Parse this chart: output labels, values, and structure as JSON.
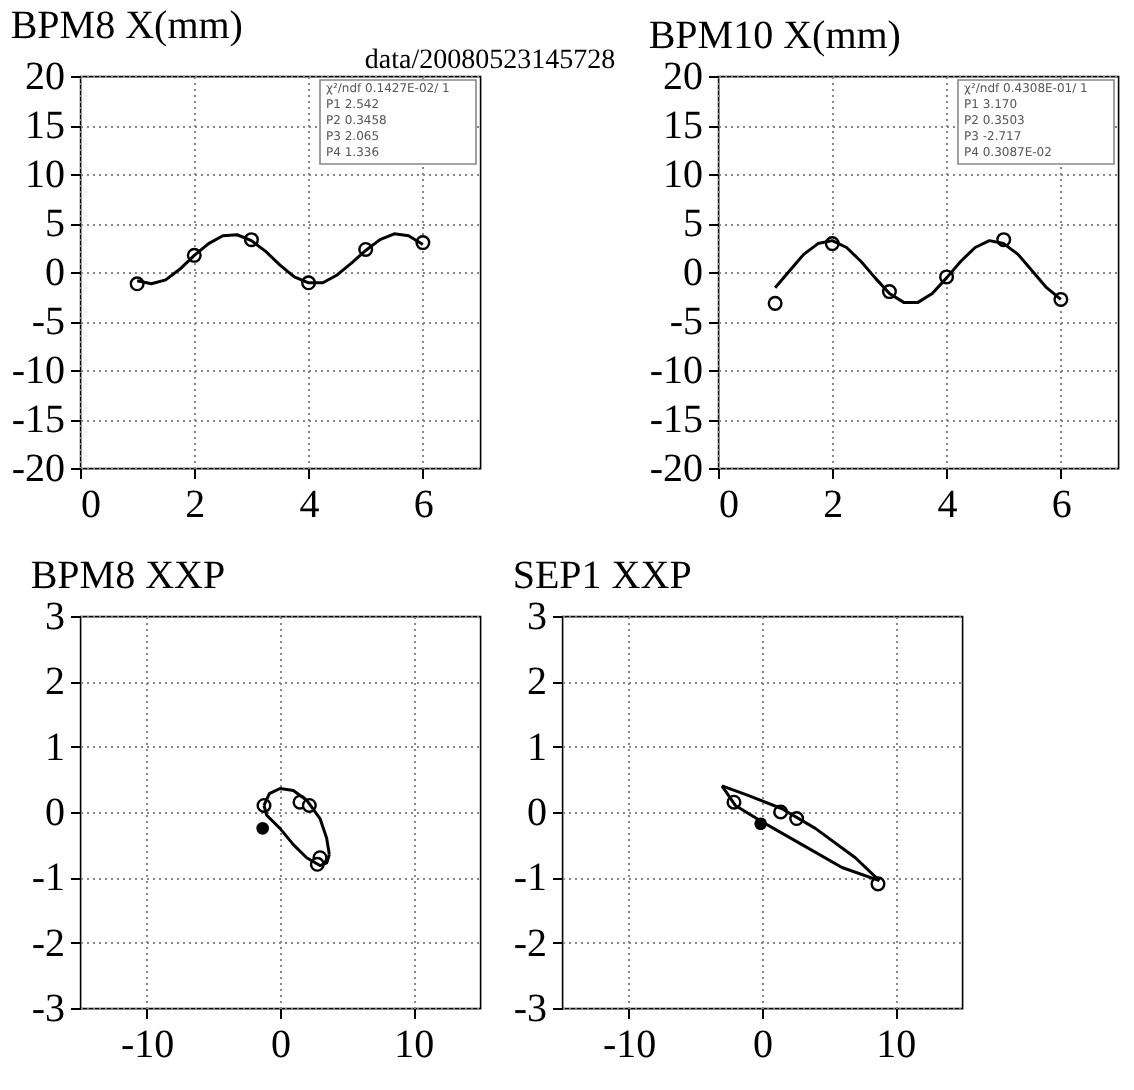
{
  "chart_data": [
    {
      "type": "scatter",
      "title": "BPM8 X(mm)",
      "subtitle": "data/20080523145728",
      "xlim": [
        0,
        7
      ],
      "xticks": [
        0,
        2,
        4,
        6
      ],
      "ylim": [
        -20,
        20
      ],
      "yticks": [
        -20,
        -15,
        -10,
        -5,
        0,
        5,
        10,
        15,
        20
      ],
      "grid": true,
      "annotations": [
        "χ²/ndf 0.1427E-02/ 1",
        "P1 2.542",
        "P2 0.3458",
        "P3 2.065",
        "P4 1.336"
      ],
      "series": [
        {
          "marker": "circle",
          "color": "#000000",
          "x": [
            1,
            2,
            3,
            4,
            5,
            6
          ],
          "values": [
            -1.2,
            1.7,
            3.3,
            -1.1,
            2.3,
            3.0
          ]
        },
        {
          "type": "line",
          "marker": "none",
          "color": "#000000",
          "x": [
            1,
            1.25,
            1.5,
            1.75,
            2,
            2.25,
            2.5,
            2.75,
            3,
            3.25,
            3.5,
            3.75,
            4,
            4.25,
            4.5,
            4.75,
            5,
            5.25,
            5.5,
            5.75,
            6
          ],
          "values": [
            -0.9,
            -1.2,
            -0.8,
            0.3,
            1.7,
            2.9,
            3.7,
            3.8,
            3.2,
            2.1,
            0.7,
            -0.5,
            -1.1,
            -1.1,
            -0.3,
            0.9,
            2.2,
            3.3,
            3.9,
            3.7,
            2.8
          ]
        }
      ]
    },
    {
      "type": "scatter",
      "title": "BPM10 X(mm)",
      "xlim": [
        0,
        7
      ],
      "xticks": [
        0,
        2,
        4,
        6
      ],
      "ylim": [
        -20,
        20
      ],
      "yticks": [
        -20,
        -15,
        -10,
        -5,
        0,
        5,
        10,
        15,
        20
      ],
      "grid": true,
      "annotations": [
        "χ²/ndf 0.4308E-01/ 1",
        "P1 3.170",
        "P2 0.3503",
        "P3 -2.717",
        "P4 0.3087E-02"
      ],
      "series": [
        {
          "marker": "circle",
          "color": "#000000",
          "x": [
            1,
            2,
            3,
            4,
            5,
            6
          ],
          "values": [
            -3.2,
            2.9,
            -2.0,
            -0.5,
            3.3,
            -2.8
          ]
        },
        {
          "type": "line",
          "marker": "none",
          "color": "#000000",
          "x": [
            1,
            1.25,
            1.5,
            1.75,
            2,
            2.25,
            2.5,
            2.75,
            3,
            3.25,
            3.5,
            3.75,
            4,
            4.25,
            4.5,
            4.75,
            5,
            5.25,
            5.5,
            5.75,
            6
          ],
          "values": [
            -1.6,
            0.1,
            1.8,
            2.9,
            3.2,
            2.5,
            1.1,
            -0.6,
            -2.2,
            -3.1,
            -3.1,
            -2.2,
            -0.6,
            1.1,
            2.5,
            3.2,
            2.9,
            1.8,
            0.1,
            -1.6,
            -2.8
          ]
        }
      ]
    },
    {
      "type": "scatter",
      "title": "BPM8 XXP",
      "xlim": [
        -15,
        15
      ],
      "xticks": [
        -10,
        0,
        10
      ],
      "ylim": [
        -3,
        3
      ],
      "yticks": [
        -3,
        -2,
        -1,
        0,
        1,
        2,
        3
      ],
      "grid": true,
      "series": [
        {
          "marker": "circle",
          "color": "#000000",
          "x": [
            -1.2,
            1.5,
            2.2,
            3.0,
            2.8
          ],
          "values": [
            0.1,
            0.15,
            0.1,
            -0.7,
            -0.8
          ]
        },
        {
          "marker": "circle",
          "color": "#000000",
          "x": [
            -1.3
          ],
          "values": [
            -0.25
          ]
        },
        {
          "type": "line",
          "marker": "none",
          "color": "#000000",
          "x": [
            -1.2,
            -0.8,
            0,
            1,
            2,
            3,
            3.5,
            3.7
          ],
          "values": [
            0.1,
            0.28,
            0.36,
            0.33,
            0.18,
            -0.1,
            -0.4,
            -0.65
          ]
        },
        {
          "type": "line",
          "marker": "none",
          "color": "#000000",
          "x": [
            -1.2,
            -1.0,
            0,
            1,
            2,
            3.0,
            3.5,
            3.7
          ],
          "values": [
            0.1,
            -0.05,
            -0.25,
            -0.5,
            -0.7,
            -0.82,
            -0.78,
            -0.65
          ]
        }
      ]
    },
    {
      "type": "scatter",
      "title": "SEP1 XXP",
      "xlim": [
        -15,
        15
      ],
      "xticks": [
        -10,
        0,
        10
      ],
      "ylim": [
        -3,
        3
      ],
      "yticks": [
        -3,
        -2,
        -1,
        0,
        1,
        2,
        3
      ],
      "grid": true,
      "series": [
        {
          "marker": "circle",
          "color": "#000000",
          "x": [
            -2.1,
            1.4,
            2.6,
            8.7
          ],
          "values": [
            0.15,
            0.0,
            -0.1,
            -1.1
          ]
        },
        {
          "marker": "circle",
          "color": "#000000",
          "x": [
            -0.1
          ],
          "values": [
            -0.18
          ]
        },
        {
          "type": "line",
          "marker": "none",
          "color": "#000000",
          "x": [
            -3,
            -1,
            1.5,
            4,
            7,
            8.8
          ],
          "values": [
            0.4,
            0.25,
            0.05,
            -0.25,
            -0.7,
            -1.05
          ]
        },
        {
          "type": "line",
          "marker": "none",
          "color": "#000000",
          "x": [
            -3,
            -2,
            0,
            3,
            6,
            8.8
          ],
          "values": [
            0.4,
            0.1,
            -0.15,
            -0.5,
            -0.85,
            -1.05
          ]
        }
      ]
    }
  ]
}
